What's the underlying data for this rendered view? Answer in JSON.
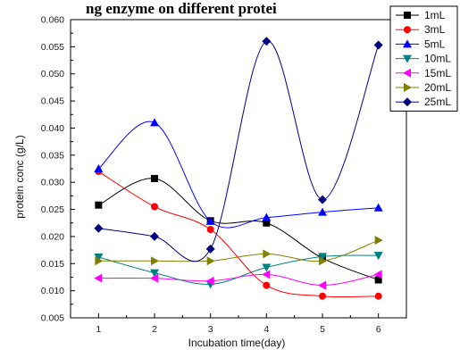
{
  "chart_data": {
    "type": "line",
    "title": "ng enzyme on different protei",
    "xlabel": "Incubation time(day)",
    "ylabel": "protein conc (g/L)",
    "x": [
      1,
      2,
      3,
      4,
      5,
      6
    ],
    "xlim": [
      0.5,
      6.5
    ],
    "ylim": [
      0.005,
      0.06
    ],
    "x_ticks": [
      "1",
      "2",
      "3",
      "4",
      "5",
      "6"
    ],
    "y_ticks": [
      "0.005",
      "0.010",
      "0.015",
      "0.020",
      "0.025",
      "0.030",
      "0.035",
      "0.040",
      "0.045",
      "0.050",
      "0.055",
      "0.060"
    ],
    "legend_position": "top-right",
    "grid": false,
    "series": [
      {
        "name": "1mL",
        "color": "#000000",
        "marker": "square",
        "values": [
          0.0258,
          0.0307,
          0.0229,
          0.0225,
          0.016,
          0.012
        ]
      },
      {
        "name": "3mL",
        "color": "#ff0000",
        "marker": "circle",
        "values": [
          0.032,
          0.0255,
          0.0213,
          0.011,
          0.009,
          0.009
        ]
      },
      {
        "name": "5mL",
        "color": "#0000ff",
        "marker": "triangle-up",
        "values": [
          0.0325,
          0.041,
          0.0228,
          0.0235,
          0.0245,
          0.0253
        ]
      },
      {
        "name": "10mL",
        "color": "#008080",
        "marker": "triangle-down",
        "values": [
          0.0162,
          0.0133,
          0.0112,
          0.0143,
          0.0163,
          0.0165
        ]
      },
      {
        "name": "15mL",
        "color": "#ff00ff",
        "marker": "triangle-left",
        "values": [
          0.0123,
          0.0123,
          0.0118,
          0.013,
          0.011,
          0.013
        ]
      },
      {
        "name": "20mL",
        "color": "#808000",
        "marker": "triangle-right",
        "values": [
          0.0155,
          0.0155,
          0.0155,
          0.0168,
          0.0155,
          0.0193
        ]
      },
      {
        "name": "25mL",
        "color": "#000080",
        "marker": "diamond",
        "values": [
          0.0215,
          0.02,
          0.0177,
          0.056,
          0.0268,
          0.0553
        ]
      }
    ]
  }
}
